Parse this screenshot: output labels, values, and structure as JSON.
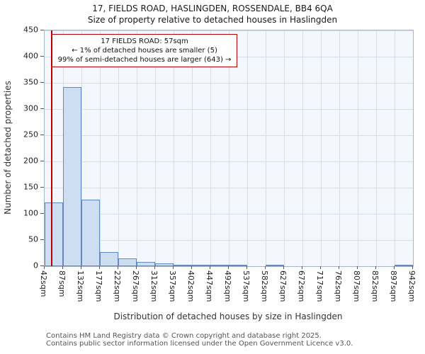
{
  "title": {
    "line1": "17, FIELDS ROAD, HASLINGDEN, ROSSENDALE, BB4 6QA",
    "line2": "Size of property relative to detached houses in Haslingden"
  },
  "axes": {
    "ylabel": "Number of detached properties",
    "xlabel": "Distribution of detached houses by size in Haslingden"
  },
  "annotation": {
    "lines": [
      "17 FIELDS ROAD: 57sqm",
      "← 1% of detached houses are smaller (5)",
      "99% of semi-detached houses are larger (643) →"
    ]
  },
  "footer": {
    "line1": "Contains HM Land Registry data © Crown copyright and database right 2025.",
    "line2": "Contains public sector information licensed under the Open Government Licence v3.0."
  },
  "colors": {
    "bar_fill": "#cdddf2",
    "bar_border": "#6089c6",
    "marker": "#bb0000",
    "grid": "#d5deee",
    "plot_bg": "#f4f7fd"
  },
  "chart_data": {
    "type": "bar",
    "title": "17, FIELDS ROAD, HASLINGDEN, ROSSENDALE, BB4 6QA — Size of property relative to detached houses in Haslingden",
    "xlabel": "Distribution of detached houses by size in Haslingden",
    "ylabel": "Number of detached properties",
    "bin_edges": [
      42,
      87,
      132,
      177,
      222,
      267,
      312,
      357,
      402,
      447,
      492,
      537,
      582,
      627,
      672,
      717,
      762,
      807,
      852,
      897,
      942
    ],
    "tick_labels": [
      "42sqm",
      "87sqm",
      "132sqm",
      "177sqm",
      "222sqm",
      "267sqm",
      "312sqm",
      "357sqm",
      "402sqm",
      "447sqm",
      "492sqm",
      "537sqm",
      "582sqm",
      "627sqm",
      "672sqm",
      "717sqm",
      "762sqm",
      "807sqm",
      "852sqm",
      "897sqm",
      "942sqm"
    ],
    "values": [
      122,
      342,
      127,
      27,
      15,
      8,
      5,
      2,
      1,
      1,
      1,
      0,
      1,
      0,
      0,
      0,
      0,
      0,
      0,
      1
    ],
    "ylim": [
      0,
      450
    ],
    "ytick_step": 50,
    "grid": true,
    "legend": "none",
    "marker_value": 57,
    "marker_label": "17 FIELDS ROAD: 57sqm"
  }
}
